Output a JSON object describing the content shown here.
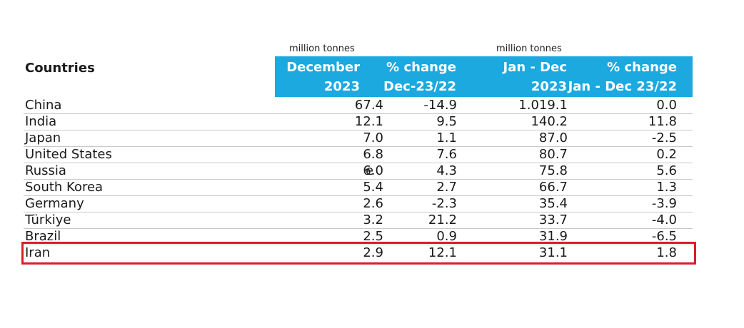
{
  "units": {
    "left": "million tonnes",
    "right": "million tonnes"
  },
  "header": {
    "countries": "Countries",
    "col1_line1": "December",
    "col1_line2": "2023",
    "col2_line1": "% change",
    "col2_line2": "Dec-23/22",
    "col3_line1": "Jan - Dec",
    "col3_line2": "2023",
    "col4_line1": "% change",
    "col4_line2": "Jan - Dec 23/22"
  },
  "colors": {
    "header_band": "#1ba9e0",
    "highlight_border": "#d71f27"
  },
  "rows": [
    {
      "country": "China",
      "december_2023": "67.4",
      "flag": "",
      "pct_dec": "-14.9",
      "jan_dec_2023": "1.019.1",
      "pct_jan_dec": "0.0"
    },
    {
      "country": "India",
      "december_2023": "12.1",
      "flag": "",
      "pct_dec": "9.5",
      "jan_dec_2023": "140.2",
      "pct_jan_dec": "11.8"
    },
    {
      "country": "Japan",
      "december_2023": "7.0",
      "flag": "",
      "pct_dec": "1.1",
      "jan_dec_2023": "87.0",
      "pct_jan_dec": "-2.5"
    },
    {
      "country": "United States",
      "december_2023": "6.8",
      "flag": "",
      "pct_dec": "7.6",
      "jan_dec_2023": "80.7",
      "pct_jan_dec": "0.2"
    },
    {
      "country": "Russia",
      "december_2023": "6.0",
      "flag": "e",
      "pct_dec": "4.3",
      "jan_dec_2023": "75.8",
      "pct_jan_dec": "5.6"
    },
    {
      "country": "South Korea",
      "december_2023": "5.4",
      "flag": "",
      "pct_dec": "2.7",
      "jan_dec_2023": "66.7",
      "pct_jan_dec": "1.3"
    },
    {
      "country": "Germany",
      "december_2023": "2.6",
      "flag": "",
      "pct_dec": "-2.3",
      "jan_dec_2023": "35.4",
      "pct_jan_dec": "-3.9"
    },
    {
      "country": "Türkiye",
      "december_2023": "3.2",
      "flag": "",
      "pct_dec": "21.2",
      "jan_dec_2023": "33.7",
      "pct_jan_dec": "-4.0"
    },
    {
      "country": "Brazil",
      "december_2023": "2.5",
      "flag": "",
      "pct_dec": "0.9",
      "jan_dec_2023": "31.9",
      "pct_jan_dec": "-6.5"
    },
    {
      "country": "Iran",
      "december_2023": "2.9",
      "flag": "",
      "pct_dec": "12.1",
      "jan_dec_2023": "31.1",
      "pct_jan_dec": "1.8"
    }
  ]
}
